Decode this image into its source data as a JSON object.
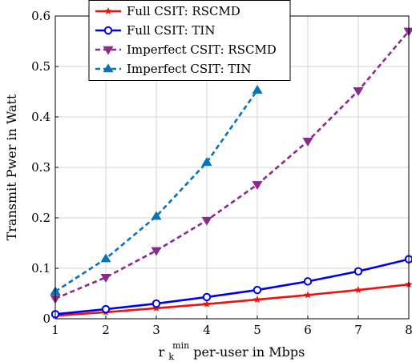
{
  "chart_data": {
    "type": "line",
    "ylabel": "Transmit Pwer in Watt",
    "xlabel_main": "r",
    "xlabel_sub": "k",
    "xlabel_sup": "min",
    "xlabel_rest": " per-user in Mbps",
    "xlim": [
      1,
      8
    ],
    "ylim": [
      0,
      0.6
    ],
    "x_ticks": [
      "1",
      "2",
      "3",
      "4",
      "5",
      "6",
      "7",
      "8"
    ],
    "y_ticks": [
      "0",
      "0.1",
      "0.2",
      "0.3",
      "0.4",
      "0.5",
      "0.6"
    ],
    "grid": true,
    "legend_position": "top-left",
    "series": [
      {
        "name": "Full CSIT: RSCMD",
        "color": "#ee1111",
        "dash": "solid",
        "marker": "star",
        "x": [
          1,
          2,
          3,
          4,
          5,
          6,
          7,
          8
        ],
        "y": [
          0.006,
          0.013,
          0.021,
          0.029,
          0.038,
          0.047,
          0.057,
          0.068
        ]
      },
      {
        "name": "Full CSIT: TIN",
        "color": "#0000ee",
        "dash": "solid",
        "marker": "circle",
        "x": [
          1,
          2,
          3,
          4,
          5,
          6,
          7,
          8
        ],
        "y": [
          0.009,
          0.019,
          0.03,
          0.043,
          0.057,
          0.074,
          0.094,
          0.118
        ]
      },
      {
        "name": "Imperfect CSIT: RSCMD",
        "color": "#8a2a8a",
        "dash": "dashed",
        "marker": "triangle-down",
        "x": [
          1,
          2,
          3,
          4,
          5,
          6,
          7,
          8
        ],
        "y": [
          0.04,
          0.082,
          0.135,
          0.195,
          0.266,
          0.352,
          0.452,
          0.57
        ]
      },
      {
        "name": "Imperfect CSIT: TIN",
        "color": "#0a73b8",
        "dash": "dashed",
        "marker": "triangle-up",
        "x": [
          1,
          2,
          3,
          4,
          5
        ],
        "y": [
          0.054,
          0.119,
          0.203,
          0.31,
          0.453
        ]
      }
    ]
  }
}
